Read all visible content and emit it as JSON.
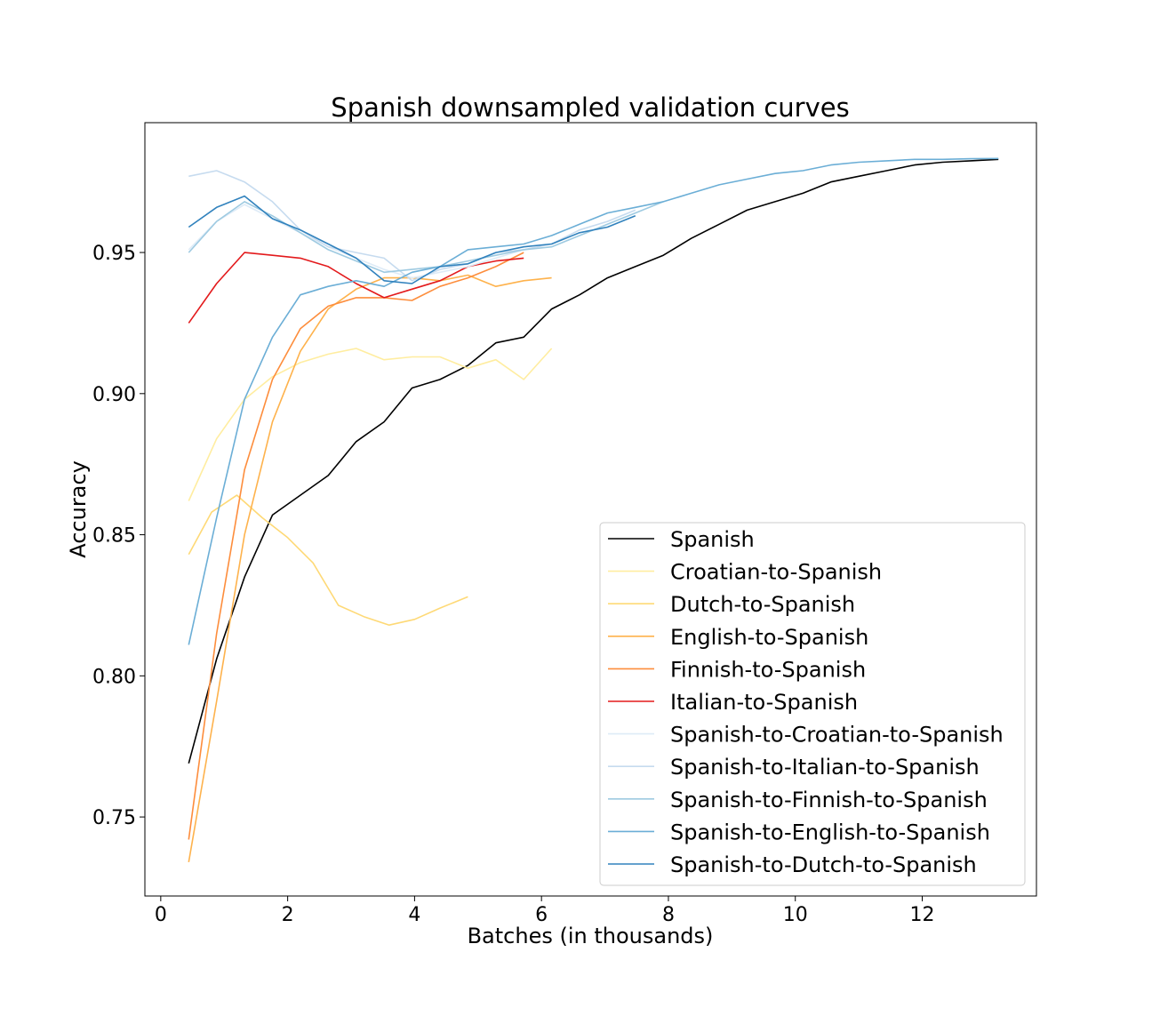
{
  "chart_data": {
    "type": "line",
    "title": "Spanish downsampled validation curves",
    "xlabel": "Batches (in thousands)",
    "ylabel": "Accuracy",
    "xlim": [
      -0.25,
      13.8
    ],
    "ylim": [
      0.722,
      0.996
    ],
    "xticks": [
      0,
      2,
      4,
      6,
      8,
      10,
      12
    ],
    "yticks": [
      0.75,
      0.8,
      0.85,
      0.9,
      0.95
    ],
    "ytick_labels": [
      "0.75",
      "0.80",
      "0.85",
      "0.90",
      "0.95"
    ],
    "grid": false,
    "legend_position": "lower-right",
    "series": [
      {
        "name": "Spanish",
        "color": "#000000",
        "x": [
          0.44,
          0.88,
          1.32,
          1.76,
          2.2,
          2.64,
          3.08,
          3.52,
          3.96,
          4.4,
          4.84,
          5.28,
          5.72,
          6.16,
          6.6,
          7.04,
          7.48,
          7.92,
          8.36,
          8.8,
          9.24,
          9.68,
          10.12,
          10.56,
          11.0,
          11.44,
          11.88,
          12.32,
          12.76,
          13.2
        ],
        "y": [
          0.769,
          0.806,
          0.835,
          0.857,
          0.864,
          0.871,
          0.883,
          0.89,
          0.902,
          0.905,
          0.91,
          0.918,
          0.92,
          0.93,
          0.935,
          0.941,
          0.945,
          0.949,
          0.955,
          0.96,
          0.965,
          0.968,
          0.971,
          0.975,
          0.977,
          0.979,
          0.981,
          0.982,
          0.9825,
          0.983
        ]
      },
      {
        "name": "Croatian-to-Spanish",
        "color": "#ffeda0",
        "x": [
          0.44,
          0.88,
          1.32,
          1.76,
          2.2,
          2.64,
          3.08,
          3.52,
          3.96,
          4.4,
          4.84,
          5.28,
          5.72,
          6.16
        ],
        "y": [
          0.862,
          0.884,
          0.898,
          0.906,
          0.911,
          0.914,
          0.916,
          0.912,
          0.913,
          0.913,
          0.909,
          0.912,
          0.905,
          0.916
        ]
      },
      {
        "name": "Dutch-to-Spanish",
        "color": "#fed976",
        "x": [
          0.44,
          0.8,
          1.2,
          1.6,
          2.0,
          2.4,
          2.8,
          3.2,
          3.6,
          4.0,
          4.4,
          4.84
        ],
        "y": [
          0.843,
          0.858,
          0.864,
          0.856,
          0.849,
          0.84,
          0.825,
          0.821,
          0.818,
          0.82,
          0.824,
          0.828
        ]
      },
      {
        "name": "English-to-Spanish",
        "color": "#feb24c",
        "x": [
          0.44,
          0.88,
          1.32,
          1.76,
          2.2,
          2.64,
          3.08,
          3.52,
          3.96,
          4.4,
          4.84,
          5.28,
          5.72,
          6.16
        ],
        "y": [
          0.734,
          0.791,
          0.85,
          0.89,
          0.915,
          0.93,
          0.937,
          0.941,
          0.941,
          0.94,
          0.942,
          0.938,
          0.94,
          0.941
        ]
      },
      {
        "name": "Finnish-to-Spanish",
        "color": "#fd8d3c",
        "x": [
          0.44,
          0.88,
          1.32,
          1.76,
          2.2,
          2.64,
          3.08,
          3.52,
          3.96,
          4.4,
          4.84,
          5.28,
          5.72
        ],
        "y": [
          0.742,
          0.815,
          0.873,
          0.905,
          0.923,
          0.931,
          0.934,
          0.934,
          0.933,
          0.938,
          0.941,
          0.945,
          0.95
        ]
      },
      {
        "name": "Italian-to-Spanish",
        "color": "#e31a1c",
        "x": [
          0.44,
          0.88,
          1.32,
          1.76,
          2.2,
          2.64,
          3.08,
          3.52,
          3.96,
          4.4,
          4.84,
          5.28,
          5.72
        ],
        "y": [
          0.925,
          0.939,
          0.95,
          0.949,
          0.948,
          0.945,
          0.939,
          0.934,
          0.937,
          0.94,
          0.945,
          0.947,
          0.948
        ]
      },
      {
        "name": "Spanish-to-Croatian-to-Spanish",
        "color": "#deebf7",
        "x": [
          0.44,
          0.88,
          1.32,
          1.76,
          2.2,
          2.64,
          3.08,
          3.52,
          3.96,
          4.4,
          4.84,
          5.28,
          5.72
        ],
        "y": [
          0.951,
          0.961,
          0.967,
          0.962,
          0.957,
          0.952,
          0.948,
          0.944,
          0.941,
          0.943,
          0.945,
          0.948,
          0.951
        ]
      },
      {
        "name": "Spanish-to-Italian-to-Spanish",
        "color": "#c6dbef",
        "x": [
          0.44,
          0.88,
          1.32,
          1.76,
          2.2,
          2.64,
          3.08,
          3.52,
          3.96,
          4.4,
          4.84,
          5.28,
          5.72,
          6.16,
          6.6,
          7.04,
          7.48
        ],
        "y": [
          0.977,
          0.979,
          0.975,
          0.968,
          0.958,
          0.952,
          0.95,
          0.948,
          0.94,
          0.944,
          0.946,
          0.95,
          0.951,
          0.953,
          0.958,
          0.961,
          0.965
        ]
      },
      {
        "name": "Spanish-to-Finnish-to-Spanish",
        "color": "#9ecae1",
        "x": [
          0.44,
          0.88,
          1.32,
          1.76,
          2.2,
          2.64,
          3.08,
          3.52,
          3.96,
          4.4,
          4.84,
          5.28,
          5.72,
          6.16,
          6.6,
          7.04,
          7.48,
          7.92
        ],
        "y": [
          0.95,
          0.961,
          0.968,
          0.963,
          0.957,
          0.951,
          0.947,
          0.943,
          0.944,
          0.945,
          0.947,
          0.949,
          0.951,
          0.952,
          0.956,
          0.96,
          0.964,
          0.968
        ]
      },
      {
        "name": "Spanish-to-English-to-Spanish",
        "color": "#6baed6",
        "x": [
          0.44,
          0.88,
          1.32,
          1.76,
          2.2,
          2.64,
          3.08,
          3.52,
          3.96,
          4.4,
          4.84,
          5.28,
          5.72,
          6.16,
          6.6,
          7.04,
          7.48,
          7.92,
          8.36,
          8.8,
          9.24,
          9.68,
          10.12,
          10.56,
          11.0,
          11.44,
          11.88,
          12.32,
          12.76,
          13.2
        ],
        "y": [
          0.811,
          0.856,
          0.898,
          0.92,
          0.935,
          0.938,
          0.94,
          0.938,
          0.943,
          0.945,
          0.951,
          0.952,
          0.953,
          0.956,
          0.96,
          0.964,
          0.966,
          0.968,
          0.971,
          0.974,
          0.976,
          0.978,
          0.979,
          0.981,
          0.982,
          0.9825,
          0.983,
          0.983,
          0.9832,
          0.9833
        ]
      },
      {
        "name": "Spanish-to-Dutch-to-Spanish",
        "color": "#3182bd",
        "x": [
          0.44,
          0.88,
          1.32,
          1.76,
          2.2,
          2.64,
          3.08,
          3.52,
          3.96,
          4.4,
          4.84,
          5.28,
          5.72,
          6.16,
          6.6,
          7.04,
          7.48
        ],
        "y": [
          0.959,
          0.966,
          0.97,
          0.962,
          0.958,
          0.953,
          0.948,
          0.94,
          0.939,
          0.945,
          0.946,
          0.95,
          0.952,
          0.953,
          0.957,
          0.959,
          0.963
        ]
      }
    ]
  }
}
